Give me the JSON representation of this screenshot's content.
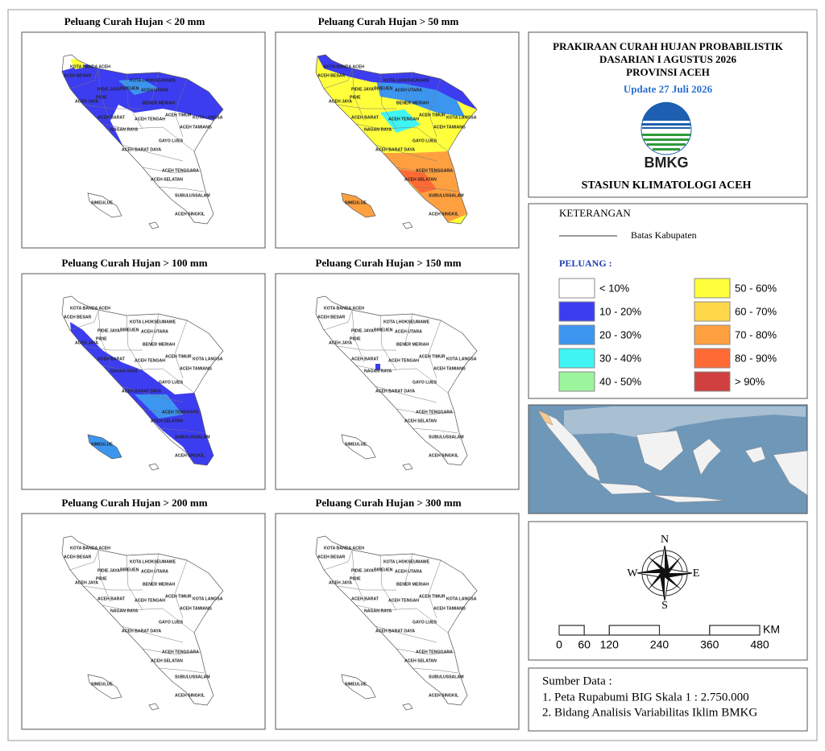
{
  "maps": [
    {
      "title": "Peluang Curah Hujan < 20 mm"
    },
    {
      "title": "Peluang Curah Hujan > 50 mm"
    },
    {
      "title": "Peluang Curah Hujan > 100 mm"
    },
    {
      "title": "Peluang Curah Hujan > 150 mm"
    },
    {
      "title": "Peluang Curah Hujan > 200 mm"
    },
    {
      "title": "Peluang Curah Hujan > 300 mm"
    }
  ],
  "regions": [
    "KOTA BANDA ACEH",
    "ACEH BESAR",
    "PIDIE JAYA",
    "PIDIE",
    "BIREUEN",
    "KOTA LHOKSEUMAWE",
    "ACEH UTARA",
    "ACEH JAYA",
    "BENER MERIAH",
    "ACEH TIMUR",
    "ACEH BARAT",
    "ACEH TENGAH",
    "KOTA LANGSA",
    "NAGAN RAYA",
    "ACEH TAMIANG",
    "GAYO LUES",
    "ACEH BARAT DAYA",
    "ACEH TENGGARA",
    "ACEH SELATAN",
    "SUBULUSSALAM",
    "SIMEULUE",
    "ACEH SINGKIL"
  ],
  "header": {
    "title_lines": [
      "PRAKIRAAN CURAH HUJAN PROBABILISTIK",
      "DASARIAN I AGUSTUS 2026",
      "PROVINSI ACEH"
    ],
    "update": "Update 27 Juli 2026",
    "logo_text": "BMKG",
    "station": "STASIUN KLIMATOLOGI ACEH"
  },
  "legend": {
    "title": "KETERANGAN",
    "boundary": "Batas Kabupaten",
    "peluang_title": "PELUANG :",
    "classes": [
      {
        "label": "< 10%",
        "color": "#ffffff"
      },
      {
        "label": "10 - 20%",
        "color": "#3c3cf0"
      },
      {
        "label": "20 - 30%",
        "color": "#3c96f0"
      },
      {
        "label": "30 - 40%",
        "color": "#40f4f4"
      },
      {
        "label": "40 - 50%",
        "color": "#9cf59c"
      },
      {
        "label": "50 - 60%",
        "color": "#ffff3c"
      },
      {
        "label": "60 - 70%",
        "color": "#ffd84a"
      },
      {
        "label": "70 - 80%",
        "color": "#ffa040"
      },
      {
        "label": "80 - 90%",
        "color": "#ff6a34"
      },
      {
        "label": "> 90%",
        "color": "#d04040"
      }
    ]
  },
  "compass": {
    "north": "N",
    "east": "E",
    "south": "S",
    "west": "W"
  },
  "scale": {
    "ticks": [
      0,
      60,
      120,
      240,
      360,
      480
    ],
    "unit": "KM"
  },
  "sources": {
    "title": "Sumber Data :",
    "items": [
      "1. Peta Rupabumi BIG Skala 1 : 2.750.000",
      "2. Bidang Analisis Variabilitas Iklim BMKG"
    ]
  }
}
